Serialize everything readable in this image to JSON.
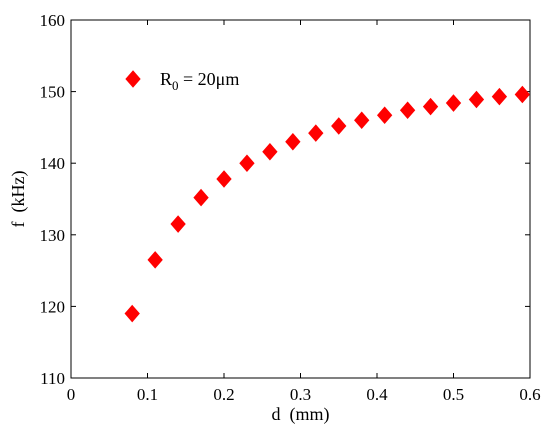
{
  "chart_data": {
    "type": "scatter",
    "xlabel": "d  (mm)",
    "ylabel": "f  (kHz)",
    "xlim": [
      0,
      0.6
    ],
    "ylim": [
      110,
      160
    ],
    "xticks": [
      0,
      0.1,
      0.2,
      0.3,
      0.4,
      0.5,
      0.6
    ],
    "xtick_labels": [
      "0",
      "0.1",
      "0.2",
      "0.3",
      "0.4",
      "0.5",
      "0.6"
    ],
    "yticks": [
      110,
      120,
      130,
      140,
      150,
      160
    ],
    "ytick_labels": [
      "110",
      "120",
      "130",
      "140",
      "150",
      "160"
    ],
    "grid": false,
    "legend_position": "top-left",
    "series": [
      {
        "name": "R0 = 20μm",
        "name_base": "R",
        "name_sub": "0",
        "name_rest": " = 20μm",
        "marker": "diamond",
        "color": "#ff0000",
        "x": [
          0.08,
          0.11,
          0.14,
          0.17,
          0.2,
          0.23,
          0.26,
          0.29,
          0.32,
          0.35,
          0.38,
          0.41,
          0.44,
          0.47,
          0.5,
          0.53,
          0.56,
          0.59
        ],
        "y": [
          119.0,
          126.5,
          131.5,
          135.2,
          137.8,
          140.0,
          141.6,
          143.0,
          144.2,
          145.2,
          146.0,
          146.7,
          147.4,
          147.9,
          148.4,
          148.9,
          149.3,
          149.6
        ]
      }
    ]
  }
}
